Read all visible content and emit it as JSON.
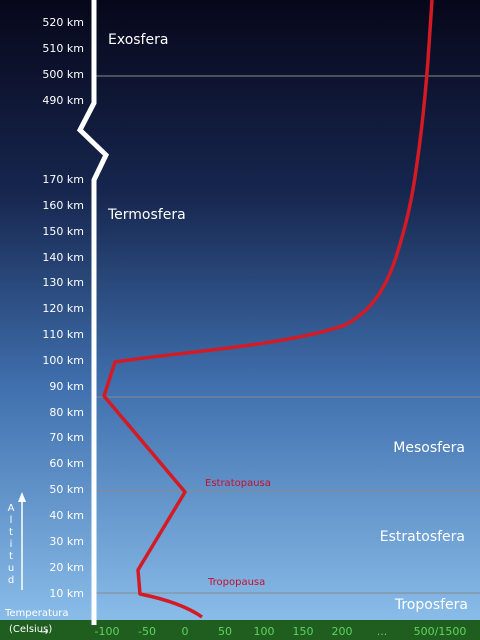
{
  "altitude_labels": [
    "520 km",
    "510 km",
    "500 km",
    "490 km",
    "170 km",
    "160 km",
    "150 km",
    "140 km",
    "130 km",
    "120 km",
    "110 km",
    "100 km",
    "90 km",
    "80 km",
    "70 km",
    "60 km",
    "50 km",
    "40 km",
    "30 km",
    "20 km",
    "10 km"
  ],
  "temperature_labels": [
    "-100",
    "-50",
    "0",
    "50",
    "100",
    "150",
    "200",
    "...",
    "500/1500"
  ],
  "layers": [
    "Exosfera",
    "Termosfera",
    "Mesosfera",
    "Estratosfera",
    "Troposfera"
  ],
  "pauses": [
    "Estratopausa",
    "Tropopausa"
  ],
  "axis_title": {
    "altitude": "Altitud",
    "temperature_line1": "Temperatura",
    "temperature_line2": "(Celsius)"
  }
}
